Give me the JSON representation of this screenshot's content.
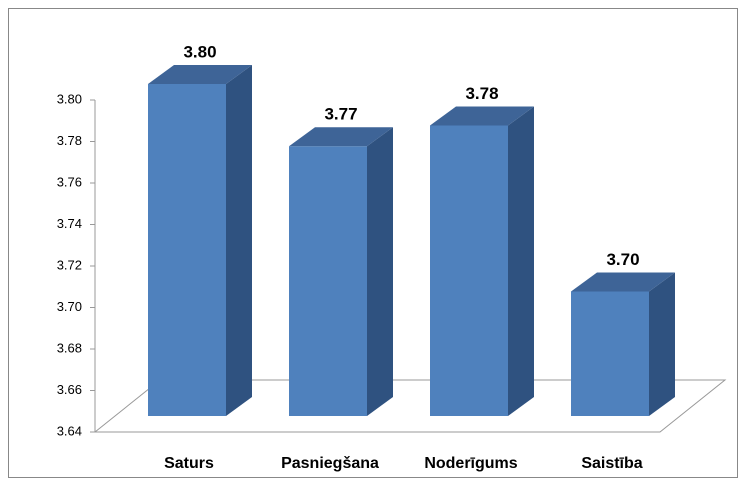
{
  "chart_data": {
    "type": "bar3d",
    "categories": [
      "Saturs",
      "Pasniegšana",
      "Noderīgums",
      "Saistība"
    ],
    "values": [
      3.8,
      3.77,
      3.78,
      3.7
    ],
    "value_labels": [
      "3.80",
      "3.77",
      "3.78",
      "3.70"
    ],
    "color": "#4f81bd",
    "ylim": [
      3.64,
      3.8
    ],
    "yticks": [
      3.64,
      3.66,
      3.68,
      {
        "value": 3.7,
        "label": "3.70"
      },
      3.72,
      3.74,
      3.76,
      3.78,
      {
        "value": 3.8,
        "label": "3.80"
      }
    ],
    "grid": false
  }
}
